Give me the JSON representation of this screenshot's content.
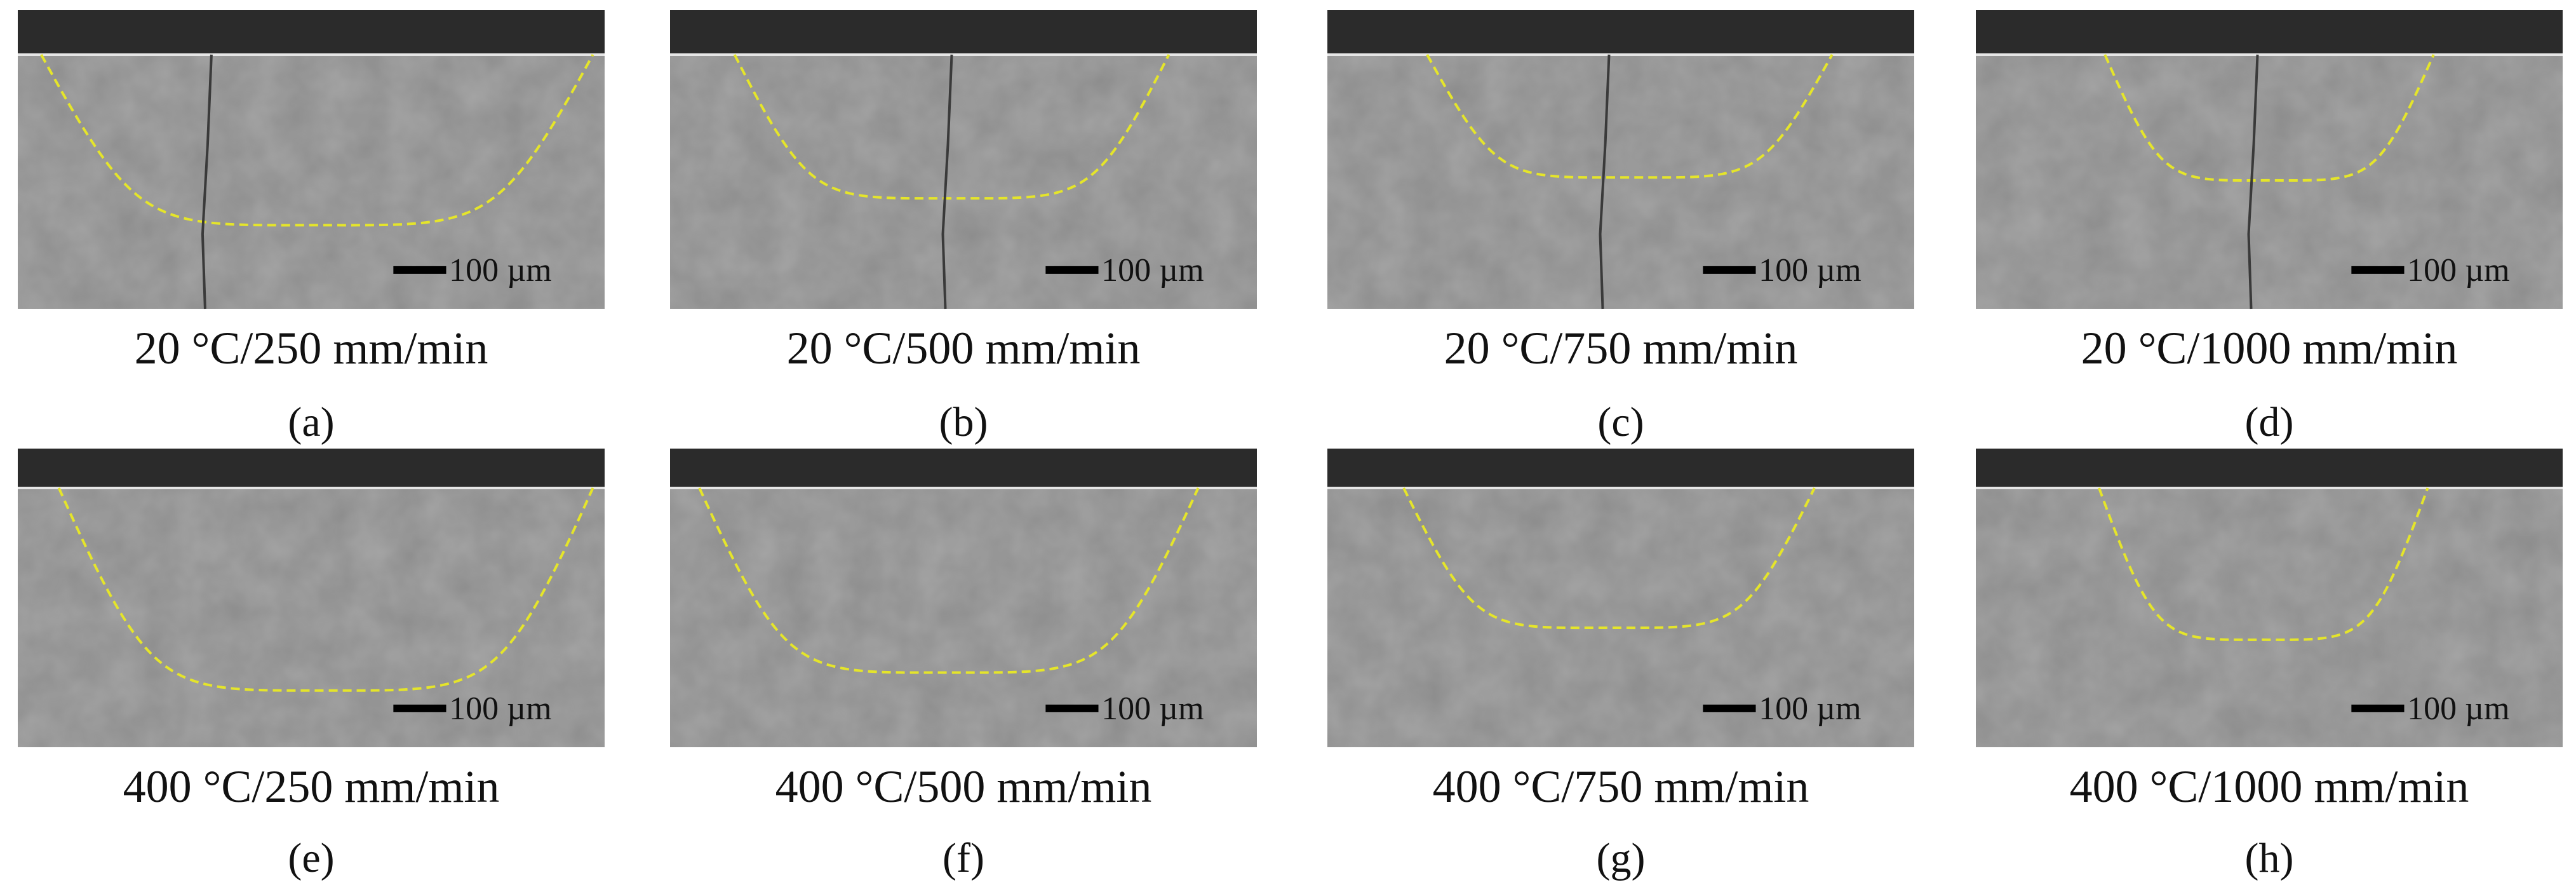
{
  "panels": [
    {
      "caption": "20 °C/250 mm/min",
      "label": "(a)",
      "scale_bar": "100 µm"
    },
    {
      "caption": "20 °C/500 mm/min",
      "label": "(b)",
      "scale_bar": "100 µm"
    },
    {
      "caption": "20 °C/750 mm/min",
      "label": "(c)",
      "scale_bar": "100 µm"
    },
    {
      "caption": "20 °C/1000 mm/min",
      "label": "(d)",
      "scale_bar": "100 µm"
    },
    {
      "caption": "400 °C/250 mm/min",
      "label": "(e)",
      "scale_bar": "100 µm"
    },
    {
      "caption": "400 °C/500 mm/min",
      "label": "(f)",
      "scale_bar": "100 µm"
    },
    {
      "caption": "400 °C/750 mm/min",
      "label": "(g)",
      "scale_bar": "100 µm"
    },
    {
      "caption": "400 °C/1000 mm/min",
      "label": "(h)",
      "scale_bar": "100 µm"
    }
  ]
}
